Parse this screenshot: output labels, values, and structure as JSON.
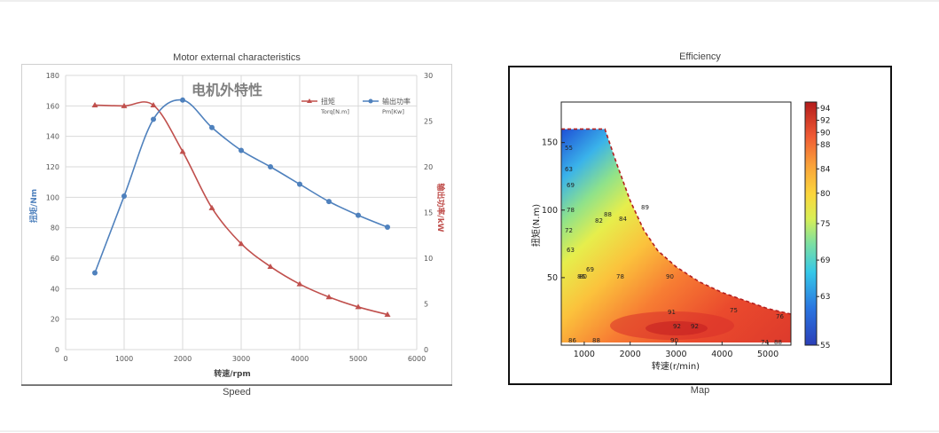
{
  "captions": {
    "motor_title": "Motor external characteristics",
    "speed": "Speed",
    "efficiency_title": "Efficiency",
    "map": "Map"
  },
  "chart_data": [
    {
      "type": "line",
      "inner_title": "电机外特性",
      "xlabel": "转速/rpm",
      "ylabel_left": "扭矩/Nm",
      "ylabel_right": "输出功率/kW",
      "xlim": [
        0,
        6000
      ],
      "ylim_left": [
        0,
        180
      ],
      "ylim_right": [
        0,
        30
      ],
      "x_ticks": [
        0,
        1000,
        2000,
        3000,
        4000,
        5000,
        6000
      ],
      "y_left_ticks": [
        0,
        20,
        40,
        60,
        80,
        100,
        120,
        140,
        160,
        180
      ],
      "y_right_ticks": [
        0,
        5,
        10,
        15,
        20,
        25,
        30
      ],
      "grid": true,
      "legend_position": "top-right",
      "series": [
        {
          "name": "扭矩",
          "unit": "Torq[N.m]",
          "axis": "left",
          "color": "#c0504d",
          "marker": "triangle",
          "x": [
            500,
            1000,
            1500,
            2000,
            2500,
            3000,
            3500,
            4000,
            4500,
            5000,
            5500
          ],
          "y": [
            160.5,
            160,
            160.5,
            130,
            93,
            69.5,
            54.5,
            43,
            34.5,
            28,
            23
          ]
        },
        {
          "name": "输出功率",
          "unit": "Pm[Kw]",
          "axis": "right",
          "color": "#4f81bd",
          "marker": "circle",
          "x": [
            500,
            1000,
            1500,
            2000,
            2500,
            3000,
            3500,
            4000,
            4500,
            5000,
            5500
          ],
          "y": [
            8.4,
            16.8,
            25.2,
            27.3,
            24.3,
            21.8,
            20,
            18.1,
            16.2,
            14.7,
            13.4
          ]
        }
      ]
    },
    {
      "type": "heatmap",
      "xlabel": "转速(r/min)",
      "ylabel": "扭矩(N.m)",
      "xlim": [
        500,
        5500
      ],
      "ylim": [
        0,
        180
      ],
      "x_ticks": [
        1000,
        2000,
        3000,
        4000,
        5000
      ],
      "y_ticks": [
        50,
        100,
        150
      ],
      "colorbar_ticks": [
        55,
        63,
        69,
        75,
        80,
        84,
        88,
        90,
        92,
        94
      ],
      "colorbar_range": [
        55,
        95
      ],
      "boundary_curve": {
        "x": [
          500,
          1450,
          1700,
          2000,
          2300,
          2600,
          3000,
          3500,
          4000,
          4500,
          5000,
          5500
        ],
        "y": [
          160,
          160,
          135,
          107,
          85,
          70,
          58,
          47,
          39,
          33,
          27,
          23
        ]
      },
      "contour_labels": [
        "55",
        "63",
        "69",
        "72",
        "78",
        "80",
        "82",
        "84",
        "86",
        "88",
        "89",
        "90",
        "91",
        "92",
        "92",
        "78",
        "69",
        "63",
        "88",
        "90",
        "86",
        "75",
        "76",
        "74",
        "88"
      ]
    }
  ]
}
